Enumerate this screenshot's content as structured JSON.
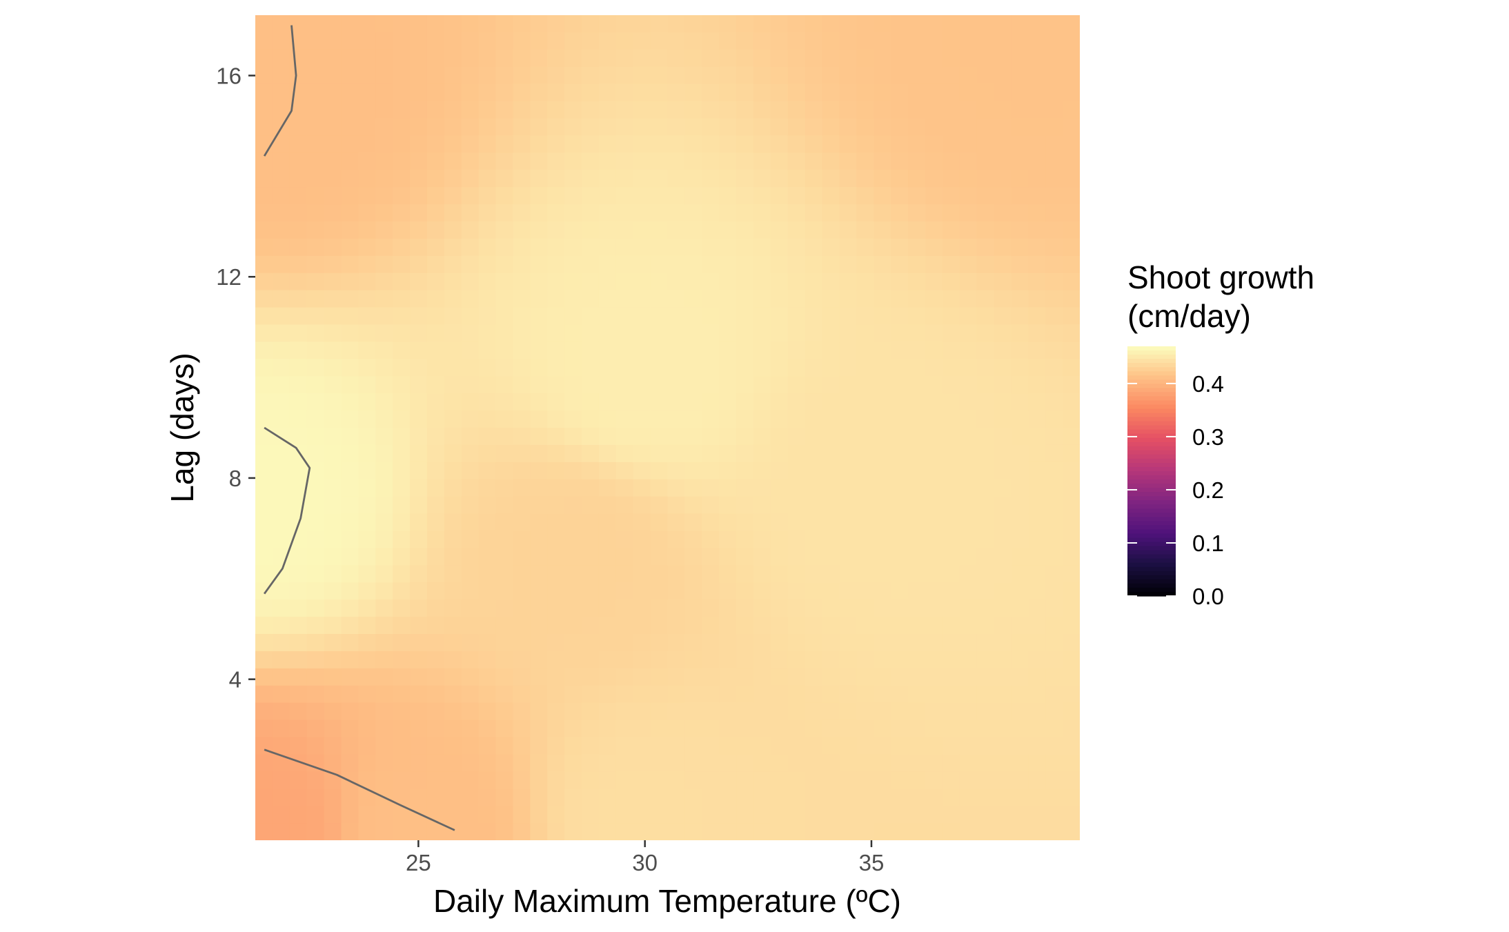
{
  "chart_data": {
    "type": "heatmap",
    "title": "",
    "xlabel": "Daily Maximum Temperature (ºC)",
    "ylabel": "Lag (days)",
    "xlim": [
      21.4,
      39.6
    ],
    "ylim": [
      0.8,
      17.2
    ],
    "x_ticks": [
      25,
      30,
      35
    ],
    "y_ticks": [
      4,
      8,
      12,
      16
    ],
    "grid": false,
    "legend": {
      "title_lines": [
        "Shoot growth",
        "(cm/day)"
      ],
      "ticks": [
        0.0,
        0.1,
        0.2,
        0.3,
        0.4
      ],
      "tick_labels": [
        "0.0",
        "0.1",
        "0.2",
        "0.3",
        "0.4"
      ],
      "range": [
        0.0,
        0.47
      ],
      "placement": "right",
      "colormap": "magma"
    },
    "contours": [
      {
        "name": "contour-top-left",
        "points": [
          [
            22.2,
            17.0
          ],
          [
            22.3,
            16.0
          ],
          [
            22.2,
            15.3
          ],
          [
            21.6,
            14.4
          ]
        ]
      },
      {
        "name": "contour-mid-left",
        "points": [
          [
            21.6,
            9.0
          ],
          [
            22.3,
            8.6
          ],
          [
            22.6,
            8.2
          ],
          [
            22.4,
            7.2
          ],
          [
            22.0,
            6.2
          ],
          [
            21.6,
            5.7
          ]
        ]
      },
      {
        "name": "contour-bottom-left",
        "points": [
          [
            21.6,
            2.6
          ],
          [
            23.2,
            2.1
          ],
          [
            24.6,
            1.5
          ],
          [
            25.8,
            1.0
          ]
        ]
      }
    ],
    "surface_anchors": [
      {
        "x": 21.6,
        "y": 1.0,
        "z": 0.385
      },
      {
        "x": 25.0,
        "y": 1.0,
        "z": 0.41
      },
      {
        "x": 30.0,
        "y": 1.2,
        "z": 0.44
      },
      {
        "x": 21.6,
        "y": 7.5,
        "z": 0.465
      },
      {
        "x": 28.5,
        "y": 6.5,
        "z": 0.43
      },
      {
        "x": 30.0,
        "y": 10.0,
        "z": 0.455
      },
      {
        "x": 21.6,
        "y": 15.5,
        "z": 0.41
      },
      {
        "x": 38.5,
        "y": 16.5,
        "z": 0.415
      },
      {
        "x": 35.0,
        "y": 8.0,
        "z": 0.445
      }
    ]
  }
}
